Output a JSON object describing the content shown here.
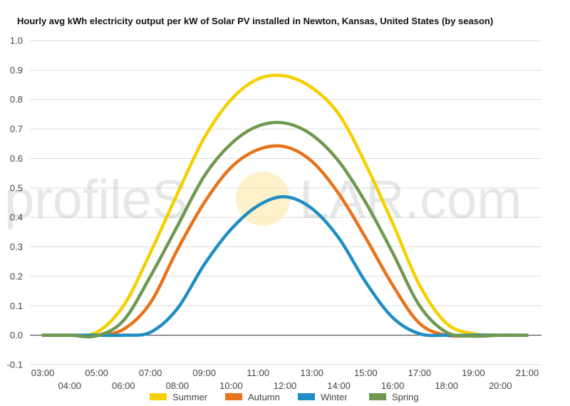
{
  "watermark": {
    "left": "profileS",
    "right": "LAR.com"
  },
  "chart_data": {
    "type": "line",
    "title": "Hourly avg kWh electricity output per kW of Solar PV installed in Newton, Kansas, United States (by season)",
    "xlabel": "",
    "ylabel": "",
    "ylim": [
      -0.1,
      1.0
    ],
    "yticks": [
      "-0.1",
      "0.0",
      "0.1",
      "0.2",
      "0.3",
      "0.4",
      "0.5",
      "0.6",
      "0.7",
      "0.8",
      "0.9",
      "1.0"
    ],
    "categories": [
      "03:00",
      "04:00",
      "05:00",
      "06:00",
      "07:00",
      "08:00",
      "09:00",
      "10:00",
      "11:00",
      "12:00",
      "13:00",
      "14:00",
      "15:00",
      "16:00",
      "17:00",
      "18:00",
      "19:00",
      "20:00",
      "21:00"
    ],
    "grid": true,
    "legend_position": "bottom",
    "series": [
      {
        "name": "Summer",
        "color": "#f5d000",
        "values": [
          0,
          0,
          0.01,
          0.1,
          0.28,
          0.48,
          0.67,
          0.8,
          0.87,
          0.88,
          0.84,
          0.75,
          0.58,
          0.38,
          0.17,
          0.04,
          0.005,
          0,
          0
        ]
      },
      {
        "name": "Autumn",
        "color": "#e8731a",
        "values": [
          0,
          0,
          0,
          0.02,
          0.11,
          0.29,
          0.45,
          0.57,
          0.63,
          0.64,
          0.59,
          0.48,
          0.33,
          0.17,
          0.04,
          0.0,
          0,
          0,
          0
        ]
      },
      {
        "name": "Winter",
        "color": "#1e8ec3",
        "values": [
          0,
          0,
          0,
          0,
          0.01,
          0.09,
          0.24,
          0.36,
          0.44,
          0.47,
          0.43,
          0.33,
          0.18,
          0.06,
          0.005,
          0,
          0,
          0,
          0
        ]
      },
      {
        "name": "Spring",
        "color": "#6f9950",
        "values": [
          0,
          0,
          -0.002,
          0.05,
          0.2,
          0.37,
          0.54,
          0.65,
          0.71,
          0.72,
          0.68,
          0.59,
          0.45,
          0.28,
          0.1,
          0.01,
          -0.003,
          0,
          0
        ]
      }
    ]
  }
}
